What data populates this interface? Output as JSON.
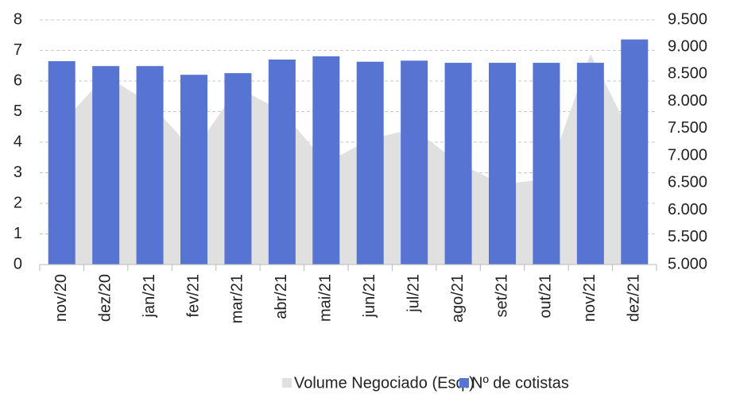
{
  "chart_data": {
    "type": "bar-area",
    "categories": [
      "nov/20",
      "dez/20",
      "jan/21",
      "fev/21",
      "mar/21",
      "abr/21",
      "mai/21",
      "jun/21",
      "jul/21",
      "ago/21",
      "set/21",
      "out/21",
      "nov/21",
      "dez/21"
    ],
    "series": [
      {
        "name": "Volume Negociado (Esq.)",
        "type": "area",
        "color": "#e0e0e0",
        "axis": "y",
        "values": [
          4.62,
          6.18,
          5.27,
          3.71,
          5.79,
          5.01,
          3.32,
          4.1,
          4.44,
          3.32,
          2.62,
          2.8,
          6.88,
          4.03
        ]
      },
      {
        "name": "Nº de cotistas",
        "type": "bar",
        "color": "#5874d2",
        "axis": "y2",
        "values": [
          8740,
          8650,
          8650,
          8490,
          8520,
          8770,
          8830,
          8730,
          8750,
          8710,
          8710,
          8710,
          8710,
          9140
        ]
      }
    ],
    "ylim": [
      0,
      8
    ],
    "yticks": [
      0,
      1,
      2,
      3,
      4,
      5,
      6,
      7,
      8
    ],
    "y2lim": [
      5000,
      9500
    ],
    "y2ticks": [
      {
        "value": 5000,
        "label": "5.000"
      },
      {
        "value": 5500,
        "label": "5.500"
      },
      {
        "value": 6000,
        "label": "6.000"
      },
      {
        "value": 6500,
        "label": "6.500"
      },
      {
        "value": 7000,
        "label": "7.000"
      },
      {
        "value": 7500,
        "label": "7.500"
      },
      {
        "value": 8000,
        "label": "8.000"
      },
      {
        "value": 8500,
        "label": "8.500"
      },
      {
        "value": 9000,
        "label": "9.000"
      },
      {
        "value": 9500,
        "label": "9.500"
      }
    ],
    "grid": true,
    "legend": "bottom"
  }
}
